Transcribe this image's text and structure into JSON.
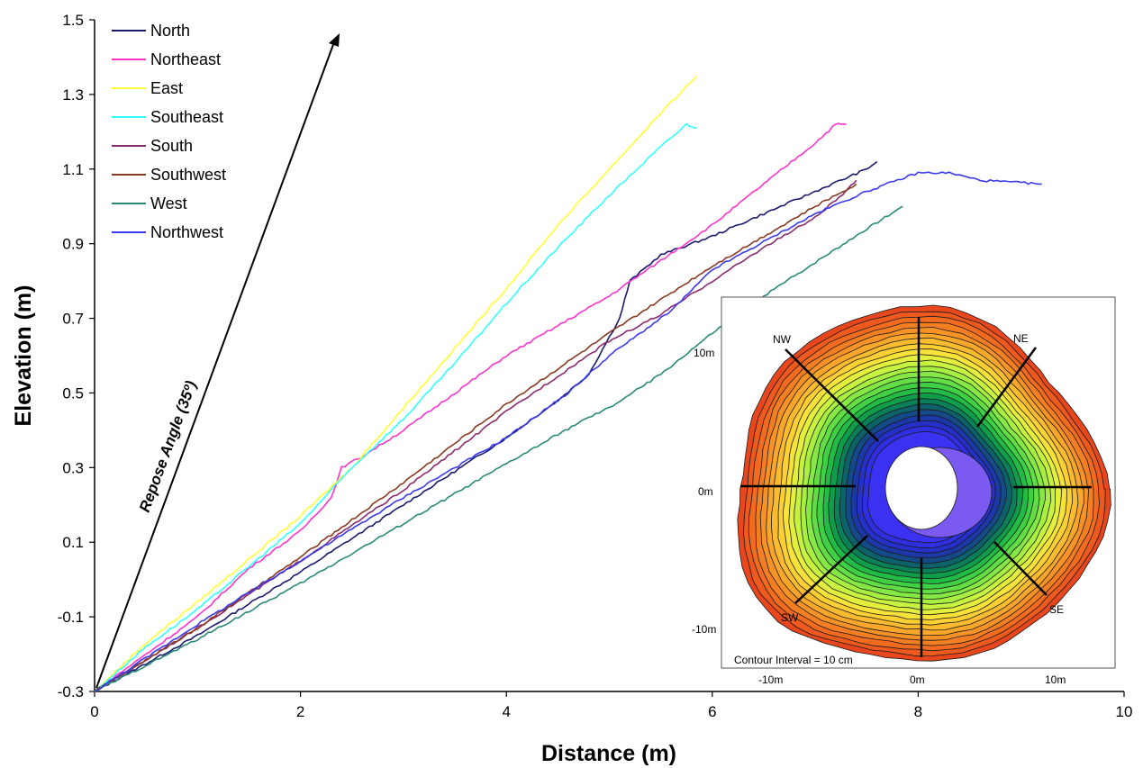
{
  "chart_data": {
    "type": "line",
    "xlabel": "Distance (m)",
    "ylabel": "Elevation (m)",
    "xlim": [
      0,
      10
    ],
    "ylim": [
      -0.3,
      1.5
    ],
    "x_ticks": [
      "0",
      "2",
      "4",
      "6",
      "8",
      "10"
    ],
    "y_ticks": [
      "-0.3",
      "-0.1",
      "0.1",
      "0.3",
      "0.5",
      "0.7",
      "0.9",
      "1.1",
      "1.3",
      "1.5"
    ],
    "grid": false,
    "legend_position": "top-left",
    "annotation": "Repose Angle (35º)",
    "series": [
      {
        "name": "North",
        "color": "#1a1a6e",
        "points": [
          [
            0,
            -0.3
          ],
          [
            1,
            -0.15
          ],
          [
            2,
            0.02
          ],
          [
            3,
            0.2
          ],
          [
            4,
            0.38
          ],
          [
            4.5,
            0.48
          ],
          [
            4.8,
            0.55
          ],
          [
            5.1,
            0.7
          ],
          [
            5.2,
            0.8
          ],
          [
            5.5,
            0.87
          ],
          [
            6,
            0.92
          ],
          [
            6.5,
            0.98
          ],
          [
            7,
            1.04
          ],
          [
            7.5,
            1.1
          ],
          [
            7.6,
            1.12
          ]
        ]
      },
      {
        "name": "Northeast",
        "color": "#ff33cc",
        "points": [
          [
            0,
            -0.3
          ],
          [
            0.5,
            -0.2
          ],
          [
            1,
            -0.1
          ],
          [
            1.5,
            0.03
          ],
          [
            2,
            0.13
          ],
          [
            2.3,
            0.22
          ],
          [
            2.4,
            0.3
          ],
          [
            2.6,
            0.33
          ],
          [
            3,
            0.4
          ],
          [
            3.5,
            0.5
          ],
          [
            4,
            0.6
          ],
          [
            5,
            0.76
          ],
          [
            6,
            0.95
          ],
          [
            6.5,
            1.06
          ],
          [
            7,
            1.17
          ],
          [
            7.2,
            1.22
          ],
          [
            7.3,
            1.22
          ]
        ]
      },
      {
        "name": "East",
        "color": "#ffff33",
        "points": [
          [
            0,
            -0.3
          ],
          [
            0.5,
            -0.17
          ],
          [
            1,
            -0.06
          ],
          [
            2,
            0.17
          ],
          [
            2.5,
            0.3
          ],
          [
            3,
            0.46
          ],
          [
            3.5,
            0.62
          ],
          [
            4,
            0.78
          ],
          [
            4.5,
            0.95
          ],
          [
            5,
            1.1
          ],
          [
            5.5,
            1.25
          ],
          [
            5.85,
            1.35
          ]
        ]
      },
      {
        "name": "Southeast",
        "color": "#33ffff",
        "points": [
          [
            0,
            -0.3
          ],
          [
            0.5,
            -0.18
          ],
          [
            1,
            -0.08
          ],
          [
            2,
            0.15
          ],
          [
            2.5,
            0.3
          ],
          [
            3,
            0.43
          ],
          [
            3.5,
            0.58
          ],
          [
            4,
            0.74
          ],
          [
            4.5,
            0.89
          ],
          [
            5,
            1.03
          ],
          [
            5.5,
            1.16
          ],
          [
            5.75,
            1.22
          ],
          [
            5.85,
            1.21
          ]
        ]
      },
      {
        "name": "South",
        "color": "#8b2a6e",
        "points": [
          [
            0,
            -0.3
          ],
          [
            1,
            -0.13
          ],
          [
            2,
            0.05
          ],
          [
            3,
            0.24
          ],
          [
            4,
            0.45
          ],
          [
            5,
            0.64
          ],
          [
            5.5,
            0.71
          ],
          [
            6,
            0.8
          ],
          [
            6.5,
            0.89
          ],
          [
            7,
            0.97
          ],
          [
            7.3,
            1.04
          ],
          [
            7.4,
            1.07
          ]
        ]
      },
      {
        "name": "Southwest",
        "color": "#8b3a22",
        "points": [
          [
            0,
            -0.3
          ],
          [
            1,
            -0.13
          ],
          [
            2,
            0.06
          ],
          [
            3,
            0.26
          ],
          [
            4,
            0.47
          ],
          [
            5,
            0.66
          ],
          [
            6,
            0.84
          ],
          [
            6.5,
            0.92
          ],
          [
            7,
            1.0
          ],
          [
            7.4,
            1.06
          ]
        ]
      },
      {
        "name": "West",
        "color": "#2a8a7a",
        "points": [
          [
            0,
            -0.3
          ],
          [
            1,
            -0.16
          ],
          [
            2,
            -0.01
          ],
          [
            3,
            0.15
          ],
          [
            4,
            0.31
          ],
          [
            4.7,
            0.42
          ],
          [
            5,
            0.46
          ],
          [
            5.5,
            0.55
          ],
          [
            6,
            0.66
          ],
          [
            6.5,
            0.76
          ],
          [
            7,
            0.85
          ],
          [
            7.5,
            0.94
          ],
          [
            7.85,
            1.0
          ]
        ]
      },
      {
        "name": "Northwest",
        "color": "#3a3aee",
        "points": [
          [
            0,
            -0.3
          ],
          [
            1,
            -0.12
          ],
          [
            2,
            0.05
          ],
          [
            3,
            0.22
          ],
          [
            4,
            0.38
          ],
          [
            4.6,
            0.5
          ],
          [
            5,
            0.6
          ],
          [
            5.4,
            0.68
          ],
          [
            5.6,
            0.72
          ],
          [
            6,
            0.83
          ],
          [
            7,
            0.98
          ],
          [
            7.5,
            1.04
          ],
          [
            8,
            1.09
          ],
          [
            8.3,
            1.09
          ],
          [
            8.6,
            1.07
          ],
          [
            9.2,
            1.06
          ]
        ]
      }
    ],
    "inset": {
      "type": "contour-map",
      "direction_labels": [
        "NW",
        "NE",
        "SW",
        "SE"
      ],
      "y_ticks": [
        "10m",
        "0m",
        "-10m"
      ],
      "x_ticks": [
        "-10m",
        "0m",
        "10m"
      ],
      "caption": "Contour Interval = 10 cm"
    }
  }
}
